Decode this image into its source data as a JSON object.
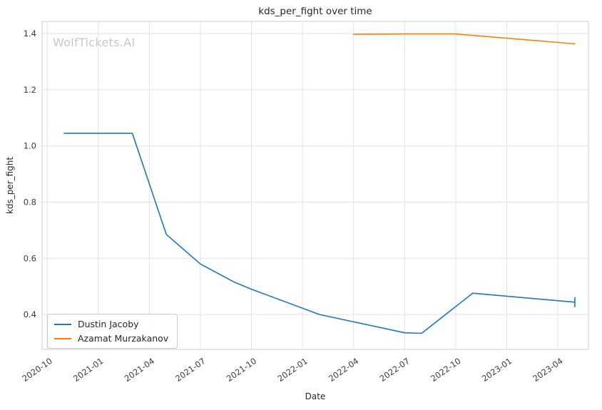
{
  "chart_data": {
    "type": "line",
    "title": "kds_per_fight over time",
    "xlabel": "Date",
    "ylabel": "kds_per_fight",
    "watermark": "WolfTickets.AI",
    "x_unit": "months, plotted as offset from 2020-10",
    "xlim": [
      -0.3,
      31.8
    ],
    "ylim": [
      0.276,
      1.443
    ],
    "grid": true,
    "legend_position": "lower left",
    "x_ticks": [
      "2020-10",
      "2021-01",
      "2021-04",
      "2021-07",
      "2021-10",
      "2022-01",
      "2022-04",
      "2022-07",
      "2022-10",
      "2023-01",
      "2023-04"
    ],
    "y_ticks": [
      0.4,
      0.6,
      0.8,
      1.0,
      1.2,
      1.4
    ],
    "series": [
      {
        "name": "Dustin Jacoby",
        "color": "#1f77b4",
        "end_cap": true,
        "points": [
          [
            "2020-11",
            1.045
          ],
          [
            "2021-03",
            1.045
          ],
          [
            "2021-05",
            0.685
          ],
          [
            "2021-07",
            0.58
          ],
          [
            "2021-09",
            0.515
          ],
          [
            "2021-10",
            0.49
          ],
          [
            "2022-02",
            0.4
          ],
          [
            "2022-07",
            0.335
          ],
          [
            "2022-08",
            0.333
          ],
          [
            "2022-11",
            0.476
          ],
          [
            "2023-05",
            0.444
          ]
        ]
      },
      {
        "name": "Azamat Murzakanov",
        "color": "#ff7f0e",
        "end_cap": false,
        "points": [
          [
            "2022-04",
            1.397
          ],
          [
            "2022-07",
            1.398
          ],
          [
            "2022-10",
            1.398
          ],
          [
            "2023-05",
            1.363
          ]
        ]
      }
    ]
  }
}
